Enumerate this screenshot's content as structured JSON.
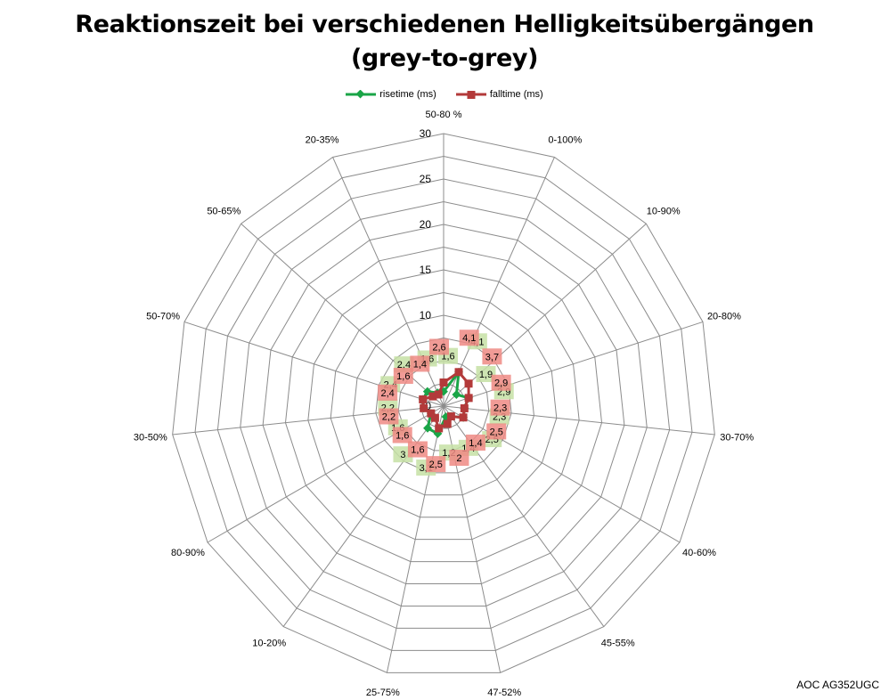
{
  "title_line1": "Reaktionszeit bei verschiedenen Helligkeitsübergängen",
  "title_line2": "(grey-to-grey)",
  "credit": "AOC AG352UGC",
  "colors": {
    "rise": "#1aa547",
    "fall": "#b33a3a",
    "rise_label_bg": "#c6e0a4",
    "fall_label_bg": "#ef8a84",
    "grid": "#8c8c8c"
  },
  "chart_data": {
    "type": "radar",
    "title": "Reaktionszeit bei verschiedenen Helligkeitsübergängen (grey-to-grey)",
    "categories": [
      "50-80 %",
      "0-100%",
      "10-90%",
      "20-80%",
      "30-70%",
      "40-60%",
      "45-55%",
      "47-52%",
      "25-75%",
      "10-20%",
      "80-90%",
      "30-50%",
      "50-70%",
      "50-65%",
      "20-35%"
    ],
    "r_ticks": [
      0,
      5,
      10,
      15,
      20,
      25,
      30
    ],
    "r_max": 30,
    "legend_position": "top",
    "series": [
      {
        "name": "risetime (ms)",
        "color": "#1aa547",
        "marker": "diamond",
        "values": [
          1.6,
          4.1,
          1.9,
          2.9,
          2.3,
          2.5,
          1.4,
          1.2,
          3.1,
          3.0,
          1.6,
          2.2,
          2.4,
          2.4,
          1.6
        ],
        "labels": [
          "1,6",
          "4,1",
          "1,9",
          "2,9",
          "2,3",
          "2,5",
          "1,4",
          "1,2",
          "3,1",
          "3",
          "1,6",
          "2,2",
          "2,4",
          "2,4",
          "1,6"
        ]
      },
      {
        "name": "falltime (ms)",
        "color": "#b33a3a",
        "marker": "square",
        "values": [
          2.6,
          4.1,
          3.7,
          2.9,
          2.3,
          2.5,
          1.4,
          2.0,
          2.5,
          1.6,
          1.6,
          2.2,
          2.4,
          1.6,
          1.4
        ],
        "labels": [
          "2,6",
          "4,1",
          "3,7",
          "2,9",
          "2,3",
          "2,5",
          "1,4",
          "2",
          "2,5",
          "1,6",
          "1,6",
          "2,2",
          "2,4",
          "1,6",
          "1,4"
        ]
      }
    ]
  }
}
